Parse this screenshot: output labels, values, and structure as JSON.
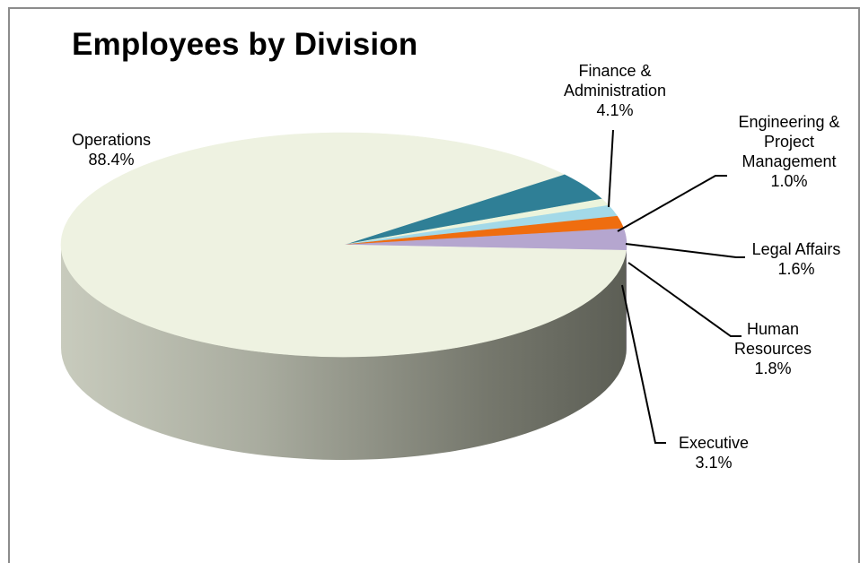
{
  "chart_data": {
    "type": "pie",
    "style": "3d-exploded-none",
    "title": "Employees by Division",
    "slices": [
      {
        "name": "Operations",
        "value": 88.4,
        "label": "88.4%",
        "color": "#eef2e1",
        "side_color": "#a7ab9d"
      },
      {
        "name": "Finance & Administration",
        "value": 4.1,
        "label": "4.1%",
        "color": "#2f7f96",
        "side_color": "#215a6a"
      },
      {
        "name": "Engineering & Project Management",
        "value": 1.0,
        "label": "1.0%",
        "color": "#ecf4dc",
        "side_color": "#a5ad95"
      },
      {
        "name": "Legal Affairs",
        "value": 1.6,
        "label": "1.6%",
        "color": "#a3d9e8",
        "side_color": "#6d9aa8"
      },
      {
        "name": "Human Resources",
        "value": 1.8,
        "label": "1.8%",
        "color": "#ef6d0f",
        "side_color": "#a84c0a"
      },
      {
        "name": "Executive",
        "value": 3.1,
        "label": "3.1%",
        "color": "#b5a6cf",
        "side_color": "#7d7193"
      }
    ],
    "labels": {
      "operations": [
        "Operations",
        "88.4%"
      ],
      "finance": [
        "Finance &",
        "Administration",
        "4.1%"
      ],
      "engineering": [
        "Engineering &",
        "Project",
        "Management",
        "1.0%"
      ],
      "legal": [
        "Legal Affairs",
        "1.6%"
      ],
      "hr": [
        "Human",
        "Resources",
        "1.8%"
      ],
      "executive": [
        "Executive",
        "3.1%"
      ]
    }
  }
}
